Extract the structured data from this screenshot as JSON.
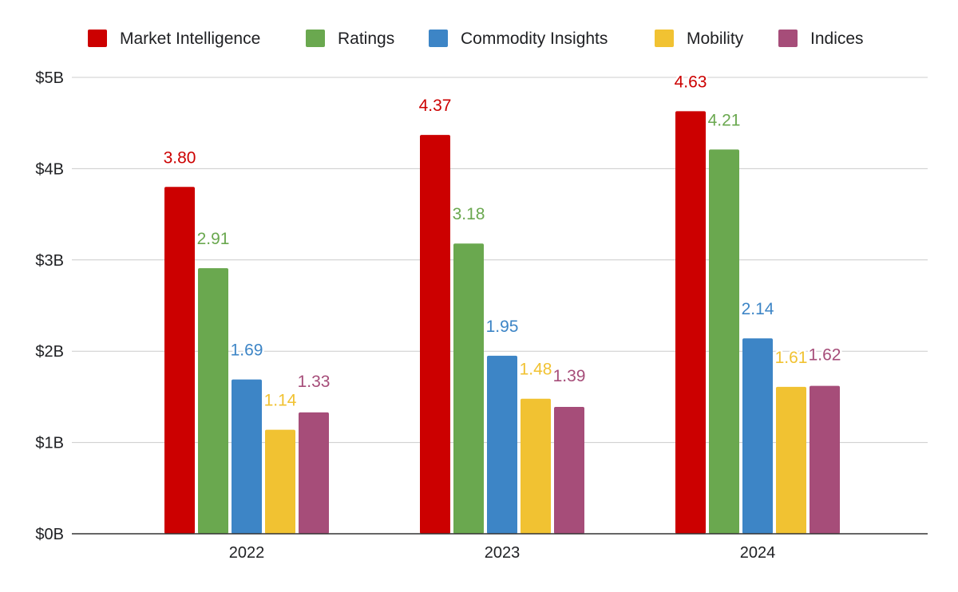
{
  "chart_data": {
    "type": "bar",
    "categories": [
      "2022",
      "2023",
      "2024"
    ],
    "series": [
      {
        "name": "Market Intelligence",
        "color": "#cc0000",
        "values": [
          3.8,
          4.37,
          4.63
        ],
        "labels": [
          "3.80",
          "4.37",
          "4.63"
        ]
      },
      {
        "name": "Ratings",
        "color": "#6aa84f",
        "values": [
          2.91,
          3.18,
          4.21
        ],
        "labels": [
          "2.91",
          "3.18",
          "4.21"
        ]
      },
      {
        "name": "Commodity Insights",
        "color": "#3d85c6",
        "values": [
          1.69,
          1.95,
          2.14
        ],
        "labels": [
          "1.69",
          "1.95",
          "2.14"
        ]
      },
      {
        "name": "Mobility",
        "color": "#f1c232",
        "values": [
          1.14,
          1.48,
          1.61
        ],
        "labels": [
          "1.14",
          "1.48",
          "1.61"
        ]
      },
      {
        "name": "Indices",
        "color": "#a64d79",
        "values": [
          1.33,
          1.39,
          1.62
        ],
        "labels": [
          "1.33",
          "1.39",
          "1.62"
        ]
      }
    ],
    "y_ticks": [
      {
        "value": 0,
        "label": "$0B"
      },
      {
        "value": 1,
        "label": "$1B"
      },
      {
        "value": 2,
        "label": "$2B"
      },
      {
        "value": 3,
        "label": "$3B"
      },
      {
        "value": 4,
        "label": "$4B"
      },
      {
        "value": 5,
        "label": "$5B"
      }
    ],
    "ylim": [
      0,
      5
    ],
    "grid": true,
    "legend_position": "top",
    "data_labels": true
  }
}
